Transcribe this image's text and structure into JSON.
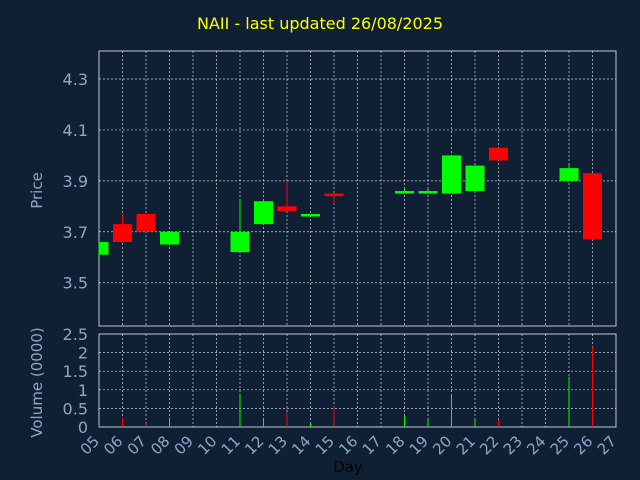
{
  "chart_data": {
    "type": "candlestick",
    "title": "NAII - last updated 26/08/2025",
    "xlabel": "Day",
    "price_panel": {
      "ylabel": "Price",
      "ylim": [
        3.33,
        4.41
      ],
      "yticks": [
        "3.5",
        "3.7",
        "3.9",
        "4.1",
        "4.3"
      ]
    },
    "volume_panel": {
      "ylabel": "Volume (0000)",
      "ylim": [
        0,
        2.5
      ],
      "yticks": [
        "0",
        "0.5",
        "1",
        "1.5",
        "2",
        "2.5"
      ]
    },
    "x_ticks": [
      "05",
      "06",
      "07",
      "08",
      "09",
      "10",
      "11",
      "12",
      "13",
      "14",
      "15",
      "16",
      "17",
      "18",
      "19",
      "20",
      "21",
      "22",
      "23",
      "24",
      "25",
      "26",
      "27"
    ],
    "x_range": [
      5,
      27
    ],
    "colors": {
      "up": "#00ff00",
      "down": "#ff0000",
      "grid": "#ffffff",
      "axis_text": "#8ea6c8",
      "title": "#ffff00"
    },
    "candles": [
      {
        "day": 5,
        "open": 3.61,
        "high": 3.66,
        "low": 3.61,
        "close": 3.66,
        "volume": 0.05
      },
      {
        "day": 6,
        "open": 3.73,
        "high": 3.77,
        "low": 3.66,
        "close": 3.66,
        "volume": 0.25
      },
      {
        "day": 7,
        "open": 3.77,
        "high": 3.77,
        "low": 3.7,
        "close": 3.7,
        "volume": 0.1
      },
      {
        "day": 8,
        "open": 3.65,
        "high": 3.7,
        "low": 3.65,
        "close": 3.7,
        "volume": 0.25
      },
      {
        "day": 11,
        "open": 3.62,
        "high": 3.83,
        "low": 3.62,
        "close": 3.7,
        "volume": 0.9
      },
      {
        "day": 12,
        "open": 3.73,
        "high": 3.82,
        "low": 3.73,
        "close": 3.82,
        "volume": 0.2
      },
      {
        "day": 13,
        "open": 3.8,
        "high": 3.9,
        "low": 3.78,
        "close": 3.78,
        "volume": 0.4
      },
      {
        "day": 14,
        "open": 3.76,
        "high": 3.77,
        "low": 3.76,
        "close": 3.77,
        "volume": 0.1
      },
      {
        "day": 15,
        "open": 3.85,
        "high": 3.85,
        "low": 3.81,
        "close": 3.84,
        "volume": 0.55
      },
      {
        "day": 18,
        "open": 3.85,
        "high": 3.87,
        "low": 3.85,
        "close": 3.86,
        "volume": 0.3
      },
      {
        "day": 19,
        "open": 3.85,
        "high": 3.87,
        "low": 3.85,
        "close": 3.86,
        "volume": 0.2
      },
      {
        "day": 20,
        "open": 3.85,
        "high": 4.0,
        "low": 3.85,
        "close": 4.0,
        "volume": 0.85
      },
      {
        "day": 21,
        "open": 3.86,
        "high": 3.96,
        "low": 3.86,
        "close": 3.96,
        "volume": 0.2
      },
      {
        "day": 22,
        "open": 4.03,
        "high": 4.03,
        "low": 3.98,
        "close": 3.98,
        "volume": 0.2
      },
      {
        "day": 25,
        "open": 3.9,
        "high": 3.97,
        "low": 3.9,
        "close": 3.95,
        "volume": 1.35
      },
      {
        "day": 26,
        "open": 3.93,
        "high": 3.93,
        "low": 3.67,
        "close": 3.67,
        "volume": 2.15
      }
    ]
  }
}
